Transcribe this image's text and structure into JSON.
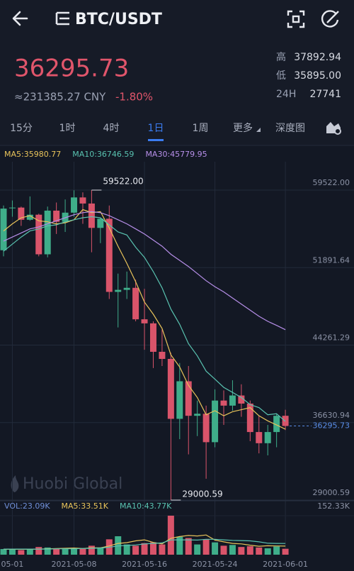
{
  "header": {
    "title": "BTC/USDT"
  },
  "ticker": {
    "price": "36295.73",
    "cny": "≈231385.27 CNY",
    "change": "-1.80%",
    "stats": [
      {
        "label": "高",
        "value": "37892.94"
      },
      {
        "label": "低",
        "value": "35895.00"
      },
      {
        "label": "24H",
        "value": "27741"
      }
    ]
  },
  "tabs": [
    "15分",
    "1时",
    "4时",
    "1日",
    "1周",
    "更多",
    "深度图"
  ],
  "active_tab": 3,
  "chart_data": {
    "type": "candlestick",
    "watermark": "Huobi Global",
    "up_color": "#3fae8a",
    "down_color": "#d9546a",
    "grid": true,
    "categories": [
      null,
      "05-01",
      null,
      null,
      null,
      null,
      null,
      null,
      "2021-05-08",
      null,
      null,
      null,
      null,
      null,
      null,
      null,
      "2021-05-16",
      null,
      null,
      null,
      null,
      null,
      null,
      null,
      "2021-05-24",
      null,
      null,
      null,
      null,
      null,
      null,
      null,
      "2021-06-01"
    ],
    "open": [
      53600,
      57800,
      57800,
      56600,
      57100,
      53200,
      57500,
      56400,
      57300,
      58800,
      58200,
      55800,
      56700,
      49500,
      49700,
      49900,
      46800,
      46400,
      43600,
      42900,
      37000,
      40700,
      37300,
      37500,
      34700,
      38800,
      38300,
      39300,
      38500,
      35700,
      34600,
      35700,
      37300
    ],
    "high": [
      58000,
      58500,
      57900,
      58900,
      57200,
      57900,
      58300,
      58600,
      59500,
      59300,
      59522,
      56800,
      58000,
      51300,
      51500,
      50700,
      49800,
      46600,
      45800,
      43500,
      42500,
      42200,
      38800,
      38300,
      39900,
      39800,
      40800,
      40400,
      38800,
      37300,
      36400,
      37500,
      37892.94
    ],
    "low": [
      53000,
      56900,
      56000,
      56500,
      53000,
      52900,
      55200,
      55400,
      56900,
      56200,
      53400,
      54300,
      48800,
      46000,
      48800,
      46600,
      43800,
      42000,
      42200,
      29000.59,
      35000,
      33500,
      35300,
      31100,
      34200,
      36400,
      37800,
      37200,
      34800,
      33600,
      33400,
      34200,
      35895
    ],
    "close": [
      57700,
      57800,
      56600,
      57100,
      53200,
      57500,
      56400,
      57300,
      58800,
      58200,
      55800,
      56700,
      49500,
      49700,
      49900,
      46800,
      46400,
      43600,
      42900,
      37000,
      40700,
      37300,
      37500,
      34700,
      38800,
      38300,
      39300,
      38500,
      35700,
      34600,
      35700,
      37300,
      36295.73
    ],
    "series": [
      {
        "name": "MA5:35980.77",
        "color": "#e8c35a",
        "values": [
          55500,
          56200,
          56800,
          57000,
          56500,
          56400,
          56200,
          56300,
          56600,
          57600,
          57300,
          57400,
          55800,
          54000,
          52300,
          50500,
          48500,
          47300,
          45900,
          43300,
          42100,
          40300,
          39100,
          37400,
          37800,
          37300,
          37700,
          37900,
          38100,
          37300,
          36800,
          36400,
          35980.77
        ]
      },
      {
        "name": "MA10:36746.59",
        "color": "#59c2b0",
        "values": [
          53500,
          54200,
          54900,
          55500,
          55700,
          56000,
          56100,
          56400,
          56600,
          56800,
          56900,
          56800,
          56100,
          55400,
          55100,
          53900,
          52900,
          51500,
          49900,
          47800,
          46300,
          44400,
          43200,
          41700,
          40900,
          40100,
          39600,
          39100,
          38400,
          38100,
          37400,
          37500,
          36746.59
        ]
      },
      {
        "name": "MA30:45779.95",
        "color": "#b68ee8",
        "values": [
          54500,
          54900,
          55300,
          55700,
          55900,
          56200,
          56500,
          56800,
          57100,
          57300,
          57400,
          57300,
          57000,
          56600,
          56200,
          55700,
          55200,
          54600,
          54000,
          53200,
          52600,
          52000,
          51300,
          50600,
          50000,
          49500,
          48900,
          48300,
          47700,
          47100,
          46600,
          46200,
          45779.95
        ]
      }
    ],
    "ylim": [
      29000.59,
      59522
    ],
    "yticks": [
      {
        "value": 59522,
        "label": "59522.00"
      },
      51891.64,
      44261.29,
      36630.94,
      29000.59
    ],
    "annotations": [
      {
        "text": "59522.00",
        "value": 59522
      },
      {
        "text": "29000.59",
        "value": 29000.59
      }
    ],
    "last_price": {
      "value": 36295.73,
      "label": "36295.73",
      "color": "#5a8ee8"
    },
    "volume": {
      "values": [
        22,
        20,
        18,
        21,
        30,
        28,
        24,
        22,
        25,
        23,
        35,
        28,
        60,
        72,
        40,
        35,
        45,
        48,
        40,
        152.33,
        70,
        65,
        40,
        60,
        48,
        35,
        38,
        30,
        33,
        28,
        25,
        32,
        23.09
      ],
      "ylim": [
        0,
        152.33
      ],
      "yticks": [
        {
          "value": 152.33,
          "label": "152.33K"
        }
      ],
      "legend": [
        {
          "text": "VOL:23.09K",
          "color": "#6f8fd8"
        }
      ],
      "series": [
        {
          "name": "MA5:33.51K",
          "color": "#e8c35a",
          "values": [
            21,
            21,
            21,
            21,
            22,
            23,
            24,
            25,
            26,
            24,
            27,
            27,
            34,
            44,
            47,
            54,
            58,
            48,
            42,
            64,
            71,
            75,
            73,
            77,
            57,
            50,
            44,
            42,
            37,
            33,
            35,
            34,
            33.51
          ]
        },
        {
          "name": "MA10:43.77K",
          "color": "#59c2b0",
          "values": [
            22,
            22,
            22,
            22,
            22,
            22,
            23,
            23,
            23,
            24,
            25,
            26,
            29,
            34,
            36,
            38,
            42,
            44,
            46,
            58,
            58,
            58,
            57,
            60,
            60,
            58,
            56,
            55,
            54,
            50,
            45,
            44,
            43.77
          ]
        }
      ]
    }
  }
}
